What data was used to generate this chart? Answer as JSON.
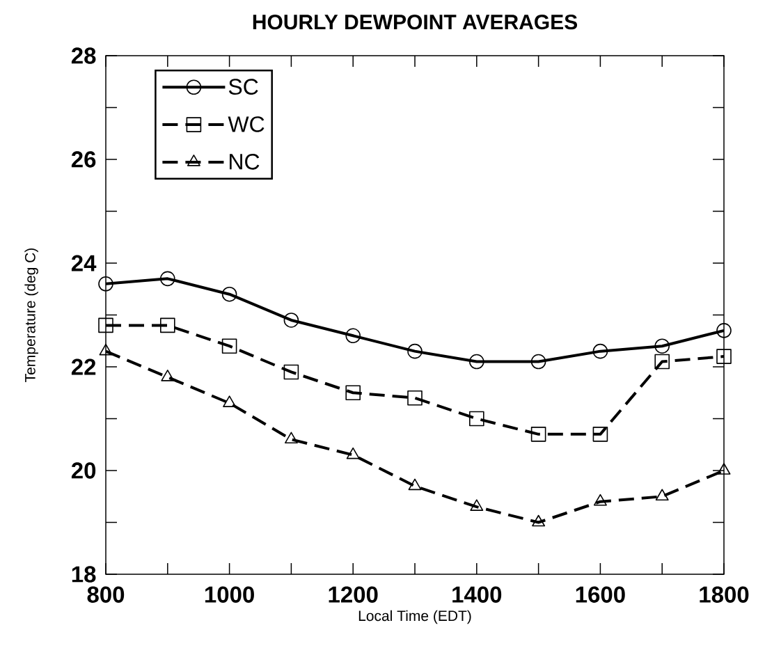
{
  "chart_data": {
    "type": "line",
    "title": "HOURLY DEWPOINT AVERAGES",
    "xlabel": "Local Time (EDT)",
    "ylabel": "Temperature (deg C)",
    "x": [
      800,
      900,
      1000,
      1100,
      1200,
      1300,
      1400,
      1500,
      1600,
      1700,
      1800
    ],
    "series": [
      {
        "name": "SC",
        "color": "#000000",
        "marker": "circle",
        "line_style": "solid",
        "values": [
          23.6,
          23.7,
          23.4,
          22.9,
          22.6,
          22.3,
          22.1,
          22.1,
          22.3,
          22.4,
          22.7
        ]
      },
      {
        "name": "WC",
        "color": "#000000",
        "marker": "square",
        "line_style": "dashed",
        "values": [
          22.8,
          22.8,
          22.4,
          21.9,
          21.5,
          21.4,
          21.0,
          20.7,
          20.7,
          22.1,
          22.2
        ]
      },
      {
        "name": "NC",
        "color": "#000000",
        "marker": "triangle",
        "line_style": "dashed",
        "values": [
          22.3,
          21.8,
          21.3,
          20.6,
          20.3,
          19.7,
          19.3,
          19.0,
          19.4,
          19.5,
          20.0
        ]
      }
    ],
    "xlim": [
      800,
      1800
    ],
    "ylim": [
      18,
      28
    ],
    "xticks": [
      800,
      {
        "value": 900,
        "label": null
      },
      1000,
      {
        "value": 1100,
        "label": null
      },
      1200,
      {
        "value": 1300,
        "label": null
      },
      1400,
      {
        "value": 1500,
        "label": null
      },
      1600,
      {
        "value": 1700,
        "label": null
      },
      1800
    ],
    "yticks": [
      18,
      {
        "value": 19,
        "label": null
      },
      20,
      {
        "value": 21,
        "label": null
      },
      22,
      {
        "value": 23,
        "label": null
      },
      24,
      {
        "value": 25,
        "label": null
      },
      26,
      {
        "value": 27,
        "label": null
      },
      28
    ],
    "grid": false,
    "legend": "top left"
  }
}
